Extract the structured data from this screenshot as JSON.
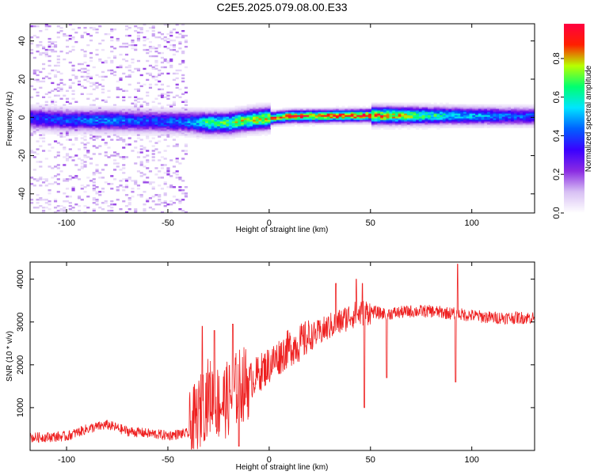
{
  "figure": {
    "title": "C2E5.2025.079.08.00.E33"
  },
  "colors": {
    "snr_line": "#ee2020",
    "colormap": [
      "#ffffff",
      "#d8c0f4",
      "#8a2be2",
      "#3a00ff",
      "#0060ff",
      "#00e5ff",
      "#00ff70",
      "#b8ff00",
      "#ff2000",
      "#ff0040"
    ]
  },
  "chart_data": [
    {
      "type": "heatmap",
      "title": "C2E5.2025.079.08.00.E33",
      "xlabel": "Height of straight line (km)",
      "ylabel": "Frequency (Hz)",
      "xlim": [
        -118,
        131
      ],
      "ylim": [
        -50,
        49
      ],
      "x_ticks": [
        -100,
        -50,
        0,
        50,
        100
      ],
      "y_ticks": [
        -40,
        -20,
        0,
        20,
        40
      ],
      "colorbar": {
        "label": "Normalized spectral amplitude",
        "range": [
          0,
          0.98
        ],
        "ticks": [
          0.0,
          0.2,
          0.4,
          0.6,
          0.8
        ]
      },
      "ridge": {
        "x": [
          -118,
          -100,
          -80,
          -60,
          -40,
          -30,
          -20,
          -10,
          0,
          10,
          50,
          90,
          131
        ],
        "center_freq": [
          -0.5,
          -1.5,
          -1.5,
          -2.0,
          -2.5,
          -3.0,
          -3.0,
          -1.5,
          -0.5,
          0.5,
          1.0,
          0.8,
          0.5
        ],
        "peak_amplitude": [
          0.42,
          0.45,
          0.5,
          0.45,
          0.5,
          0.7,
          0.75,
          0.8,
          0.85,
          0.96,
          0.96,
          0.6,
          0.45
        ]
      },
      "noise_region_x": [
        -118,
        -40
      ]
    },
    {
      "type": "line",
      "xlabel": "Height of straight line (km)",
      "ylabel": "SNR (10 * v/v)",
      "xlim": [
        -118,
        131
      ],
      "ylim": [
        0,
        4400
      ],
      "x_ticks": [
        -100,
        -50,
        0,
        50,
        100
      ],
      "y_ticks": [
        1000,
        2000,
        3000,
        4000
      ],
      "series": [
        {
          "color": "#ee2020",
          "x": [
            -118,
            -100,
            -90,
            -80,
            -70,
            -60,
            -50,
            -45,
            -40,
            -35,
            -30,
            -25,
            -20,
            -15,
            -10,
            -5,
            0,
            5,
            10,
            15,
            20,
            25,
            30,
            35,
            40,
            45,
            50,
            55,
            60,
            70,
            80,
            90,
            100,
            110,
            120,
            131
          ],
          "values": [
            300,
            330,
            500,
            600,
            450,
            400,
            350,
            380,
            400,
            800,
            1300,
            1100,
            1200,
            1500,
            1600,
            1800,
            2000,
            2200,
            2400,
            2500,
            2650,
            2750,
            2900,
            3000,
            3150,
            3200,
            3250,
            3200,
            3200,
            3250,
            3250,
            3200,
            3150,
            3100,
            3100,
            3100
          ]
        }
      ],
      "notable_points": [
        {
          "x": -33,
          "y": 2900
        },
        {
          "x": -27,
          "y": 2800
        },
        {
          "x": -18,
          "y": 2950
        },
        {
          "x": -15,
          "y": 100
        },
        {
          "x": 33,
          "y": 3900
        },
        {
          "x": 43,
          "y": 4000
        },
        {
          "x": 46,
          "y": 3900
        },
        {
          "x": 47,
          "y": 1000
        },
        {
          "x": 58,
          "y": 1700
        },
        {
          "x": 93,
          "y": 4350
        },
        {
          "x": 92,
          "y": 1600
        }
      ]
    }
  ]
}
